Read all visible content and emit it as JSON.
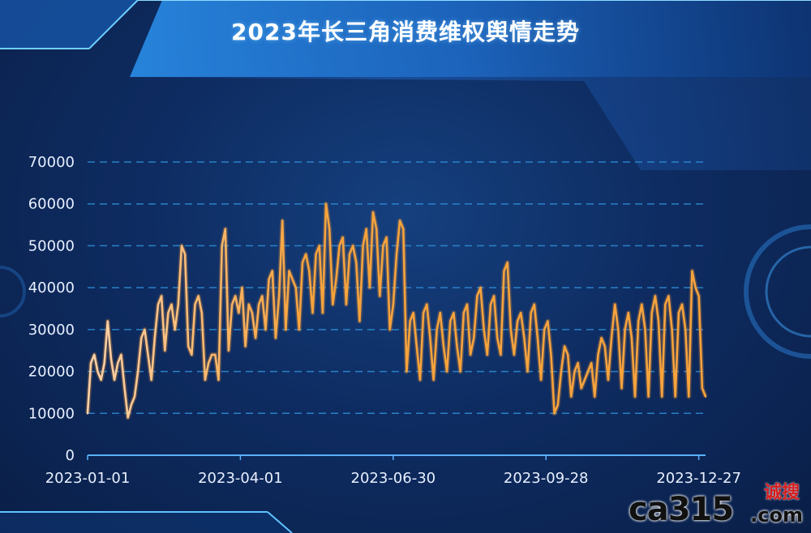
{
  "colors": {
    "line": "#f7a33c",
    "line_start": "#ffd2a8",
    "grid": "#2f8fd8",
    "axis": "#5ab0ff"
  },
  "watermark": {
    "main": "ca315",
    "cn": "诚搜",
    "com": ".com"
  },
  "chart_data": {
    "type": "line",
    "title": "2023年长三角消费维权舆情走势",
    "xlabel": "",
    "ylabel": "",
    "ylim": [
      0,
      70000
    ],
    "yticks": [
      0,
      10000,
      20000,
      30000,
      40000,
      50000,
      60000,
      70000
    ],
    "xticks": [
      "2023-01-01",
      "2023-04-01",
      "2023-06-30",
      "2023-09-28",
      "2023-12-27"
    ],
    "x_start": "2023-01-01",
    "x_end": "2023-12-31",
    "grid": true,
    "series": [
      {
        "values": [
          10000,
          22000,
          24000,
          20000,
          18000,
          22000,
          32000,
          23000,
          18000,
          22000,
          24000,
          16000,
          9000,
          12000,
          14000,
          20000,
          28000,
          30000,
          24000,
          18000,
          28000,
          36000,
          38000,
          25000,
          34000,
          36000,
          30000,
          36000,
          50000,
          48000,
          26000,
          24000,
          36000,
          38000,
          34000,
          18000,
          22000,
          24000,
          24000,
          18000,
          50000,
          54000,
          25000,
          36000,
          38000,
          34000,
          40000,
          26000,
          36000,
          34000,
          28000,
          36000,
          38000,
          30000,
          42000,
          44000,
          28000,
          38000,
          56000,
          30000,
          44000,
          42000,
          40000,
          30000,
          46000,
          48000,
          44000,
          34000,
          48000,
          50000,
          34000,
          60000,
          54000,
          36000,
          42000,
          50000,
          52000,
          36000,
          48000,
          50000,
          46000,
          32000,
          50000,
          54000,
          40000,
          58000,
          54000,
          38000,
          50000,
          52000,
          30000,
          36000,
          48000,
          56000,
          54000,
          20000,
          32000,
          34000,
          26000,
          18000,
          34000,
          36000,
          28000,
          18000,
          30000,
          34000,
          26000,
          20000,
          32000,
          34000,
          26000,
          20000,
          34000,
          36000,
          24000,
          28000,
          38000,
          40000,
          30000,
          24000,
          36000,
          38000,
          28000,
          24000,
          44000,
          46000,
          30000,
          24000,
          32000,
          34000,
          28000,
          20000,
          34000,
          36000,
          28000,
          18000,
          30000,
          32000,
          24000,
          10000,
          12000,
          20000,
          26000,
          24000,
          14000,
          20000,
          22000,
          16000,
          18000,
          20000,
          22000,
          14000,
          24000,
          28000,
          26000,
          18000,
          28000,
          36000,
          30000,
          16000,
          30000,
          34000,
          28000,
          14000,
          32000,
          36000,
          30000,
          14000,
          34000,
          38000,
          32000,
          14000,
          36000,
          38000,
          30000,
          14000,
          34000,
          36000,
          30000,
          14000,
          44000,
          40000,
          38000,
          16000,
          14000
        ]
      }
    ]
  }
}
